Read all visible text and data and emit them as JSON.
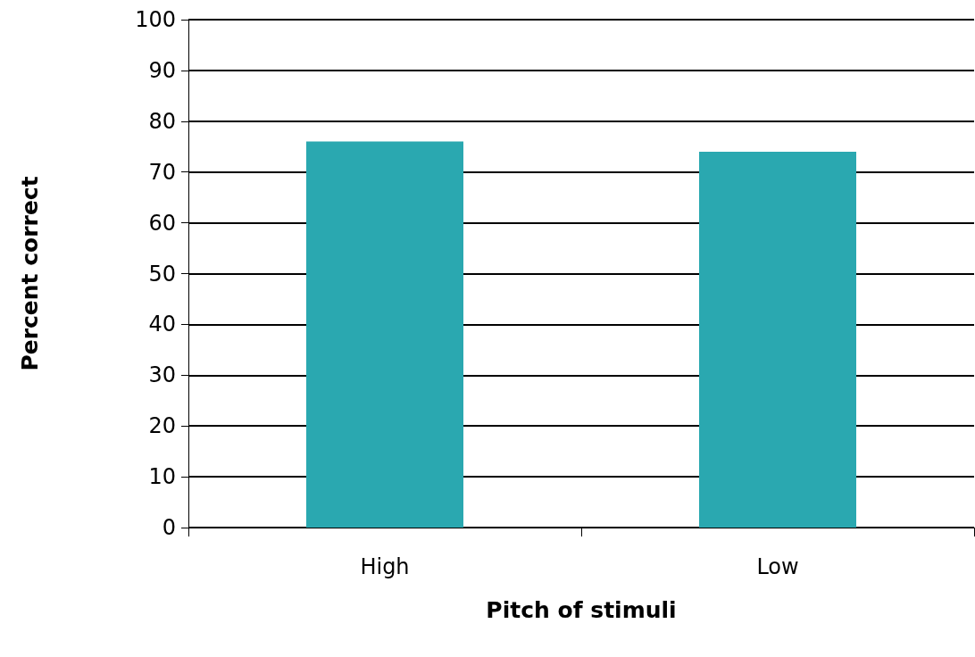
{
  "chart_data": {
    "type": "bar",
    "xlabel": "Pitch of stimuli",
    "ylabel": "Percent correct",
    "categories": [
      "High",
      "Low"
    ],
    "values": [
      76,
      74
    ],
    "color": "#2aa8b0",
    "ylim": [
      0,
      100
    ],
    "yticks": [
      0,
      10,
      20,
      30,
      40,
      50,
      60,
      70,
      80,
      90,
      100
    ],
    "grid": "y"
  }
}
